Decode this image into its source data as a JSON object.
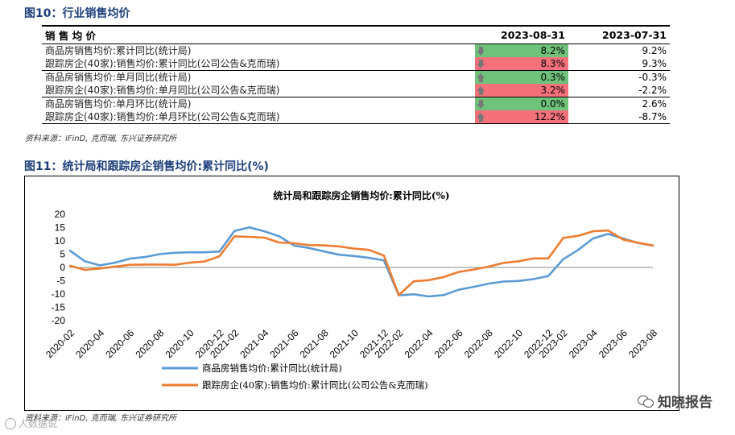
{
  "fig10_title": "图10：行业销售均价",
  "table": {
    "header": {
      "col0": "销 售 均 价",
      "col1": "2023-08-31",
      "col2": "2023-07-31"
    },
    "rows": [
      {
        "label": "商品房销售均价:累计同比(统计局)",
        "cur": "8.2%",
        "prev": "9.2%",
        "dir": "down",
        "color": "green"
      },
      {
        "label": "跟踪房企(40家):销售均价:累计同比(公司公告&克而瑞)",
        "cur": "8.3%",
        "prev": "9.3%",
        "dir": "down",
        "color": "red"
      },
      {
        "label": "商品房销售均价:单月同比(统计局)",
        "cur": "0.3%",
        "prev": "-0.3%",
        "dir": "up",
        "color": "green"
      },
      {
        "label": "跟踪房企(40家):销售均价:单月同比(公司公告&克而瑞)",
        "cur": "3.2%",
        "prev": "-2.2%",
        "dir": "up",
        "color": "red"
      },
      {
        "label": "商品房销售均价:单月环比(统计局)",
        "cur": "0.0%",
        "prev": "2.6%",
        "dir": "down",
        "color": "green"
      },
      {
        "label": "跟踪房企(40家):销售均价:单月环比(公司公告&克而瑞)",
        "cur": "12.2%",
        "prev": "-8.7%",
        "dir": "up",
        "color": "red"
      }
    ]
  },
  "source1": "资料来源：iFinD, 克而瑞, 东兴证券研究所",
  "fig11_title": "图11：统计局和跟踪房企销售均价:累计同比(%)",
  "source2": "资料来源：iFinD, 克而瑞, 东兴证券研究所",
  "watermark": "知晓报告",
  "watermark2": "人数据说",
  "colors": {
    "blue": "#5b9bd5",
    "orange": "#ed7d31",
    "green_cell": "#6fc27a",
    "red_cell": "#f4707b",
    "title": "#1d3f7a"
  },
  "chart_data": {
    "type": "line",
    "title": "统计局和跟踪房企销售均价:累计同比(%)",
    "ylim": [
      -20,
      20
    ],
    "yticks": [
      -20,
      -15,
      -10,
      -5,
      0,
      5,
      10,
      15,
      20
    ],
    "x": [
      "2020-02",
      "2020-03",
      "2020-04",
      "2020-05",
      "2020-06",
      "2020-07",
      "2020-08",
      "2020-09",
      "2020-10",
      "2020-11",
      "2020-12",
      "2021-02",
      "2021-03",
      "2021-04",
      "2021-05",
      "2021-06",
      "2021-07",
      "2021-08",
      "2021-09",
      "2021-10",
      "2021-11",
      "2021-12",
      "2022-02",
      "2022-03",
      "2022-04",
      "2022-05",
      "2022-06",
      "2022-07",
      "2022-08",
      "2022-09",
      "2022-10",
      "2022-11",
      "2022-12",
      "2023-02",
      "2023-03",
      "2023-04",
      "2023-05",
      "2023-06",
      "2023-07",
      "2023-08"
    ],
    "xtick_labels": [
      "2020-02",
      "2020-04",
      "2020-06",
      "2020-08",
      "2020-10",
      "2020-12",
      "2021-02",
      "2021-04",
      "2021-06",
      "2021-08",
      "2021-10",
      "2021-12",
      "2022-02",
      "2022-04",
      "2022-06",
      "2022-08",
      "2022-10",
      "2022-12",
      "2023-02",
      "2023-04",
      "2023-06",
      "2023-08"
    ],
    "legend_position": "bottom-left",
    "grid": false,
    "series": [
      {
        "name": "商品房销售均价:累计同比(统计局)",
        "color": "#5b9bd5",
        "values": [
          6.3,
          2.3,
          0.8,
          1.8,
          3.3,
          3.9,
          5.0,
          5.5,
          5.7,
          5.7,
          6.0,
          13.7,
          15.1,
          13.6,
          11.7,
          8.2,
          7.3,
          6.0,
          4.8,
          4.3,
          3.6,
          2.7,
          -10.5,
          -10.1,
          -10.9,
          -10.4,
          -8.4,
          -7.3,
          -6.1,
          -5.3,
          -5.1,
          -4.4,
          -3.2,
          3.1,
          6.6,
          10.9,
          12.6,
          10.9,
          9.2,
          8.2
        ]
      },
      {
        "name": "跟踪房企(40家):销售均价:累计同比(公司公告&克而瑞)",
        "color": "#ed7d31",
        "values": [
          0.6,
          -0.9,
          -0.4,
          0.3,
          1.0,
          1.1,
          1.1,
          1.0,
          1.8,
          2.2,
          4.2,
          11.7,
          11.5,
          11.2,
          9.4,
          9.1,
          8.4,
          8.3,
          7.9,
          7.1,
          6.6,
          4.5,
          -10.4,
          -5.2,
          -4.8,
          -3.6,
          -1.7,
          -0.8,
          0.3,
          1.7,
          2.3,
          3.4,
          3.4,
          11.1,
          11.9,
          13.6,
          13.9,
          10.5,
          9.3,
          8.3
        ]
      }
    ]
  }
}
